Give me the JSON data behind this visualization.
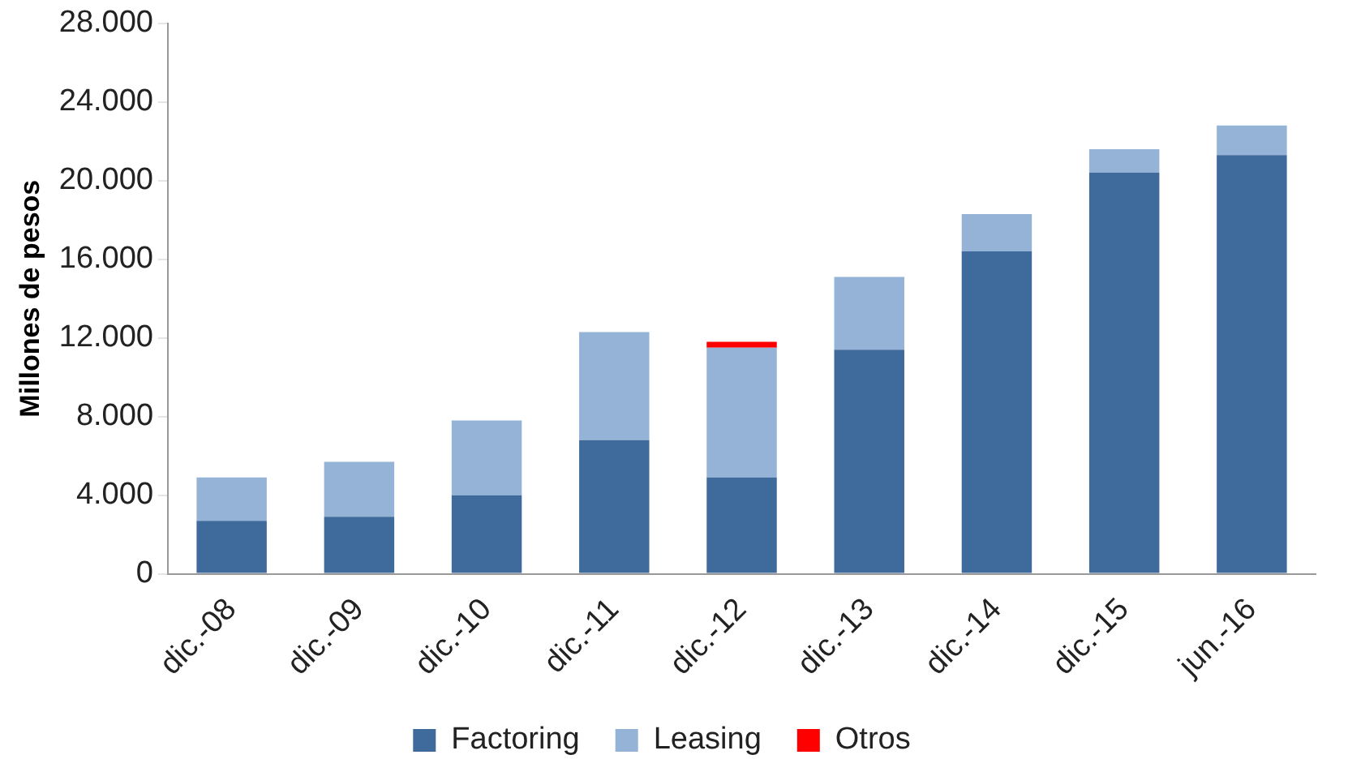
{
  "chart_data": {
    "type": "bar",
    "ylabel": "Millones de pesos",
    "categories": [
      "dic.-08",
      "dic.-09",
      "dic.-10",
      "dic.-11",
      "dic.-12",
      "dic.-13",
      "dic.-14",
      "dic.-15",
      "jun.-16"
    ],
    "series": [
      {
        "name": "Factoring",
        "color": "#3f6a9c",
        "values": [
          2700,
          2900,
          4000,
          6800,
          4900,
          11400,
          16400,
          20400,
          21300
        ]
      },
      {
        "name": "Leasing",
        "color": "#95b3d7",
        "values": [
          2200,
          2800,
          3800,
          5500,
          6600,
          3700,
          1900,
          1200,
          1500
        ]
      },
      {
        "name": "Otros",
        "color": "#ff0000",
        "values": [
          null,
          null,
          null,
          null,
          300,
          null,
          null,
          null,
          null
        ]
      }
    ],
    "stacked": true,
    "ylim": [
      0,
      28000
    ],
    "yticks": [
      {
        "value": 0,
        "label": "0"
      },
      {
        "value": 4000,
        "label": "4.000"
      },
      {
        "value": 8000,
        "label": "8.000"
      },
      {
        "value": 12000,
        "label": "12.000"
      },
      {
        "value": 16000,
        "label": "16.000"
      },
      {
        "value": 20000,
        "label": "20.000"
      },
      {
        "value": 24000,
        "label": "24.000"
      },
      {
        "value": 28000,
        "label": "28.000"
      }
    ],
    "grid": false,
    "legend": "bottom"
  }
}
